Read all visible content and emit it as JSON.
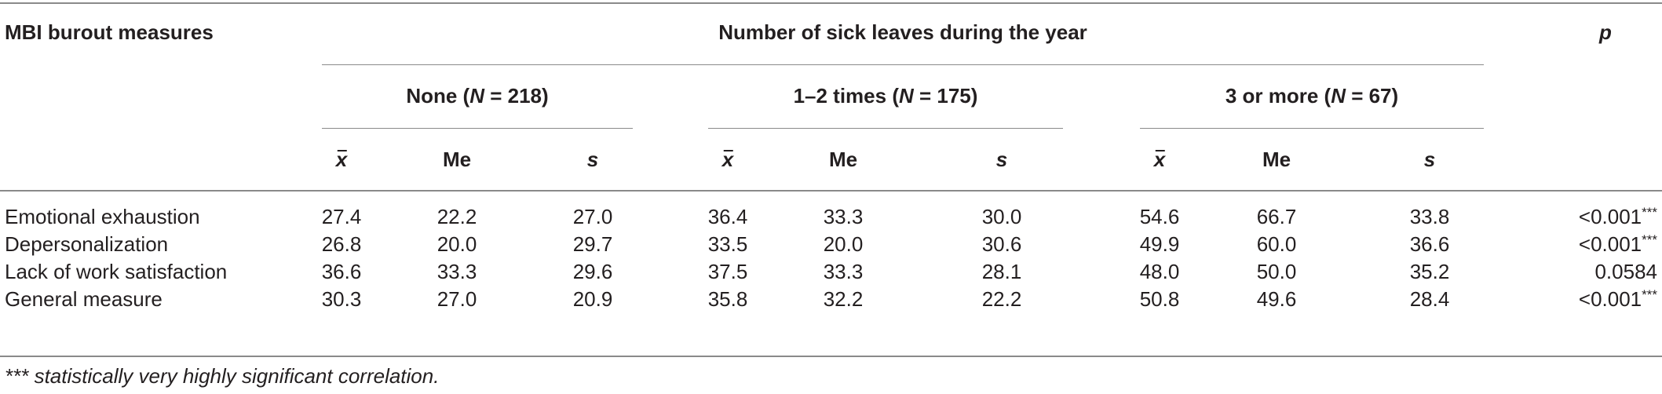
{
  "table": {
    "row_header": "MBI burout measures",
    "spanner": "Number of sick leaves during the year",
    "p_header": "p",
    "groups": [
      {
        "label_pre": "None (",
        "n_symbol": "N",
        "label_post": " = 218)"
      },
      {
        "label_pre": "1–2 times (",
        "n_symbol": "N",
        "label_post": " = 175)"
      },
      {
        "label_pre": "3 or more (",
        "n_symbol": "N",
        "label_post": " = 67)"
      }
    ],
    "stats": {
      "mean": "x",
      "median": "Me",
      "sd": "s"
    },
    "rows": [
      {
        "label": "Emotional exhaustion",
        "values": [
          "27.4",
          "22.2",
          "27.0",
          "36.4",
          "33.3",
          "30.0",
          "54.6",
          "66.7",
          "33.8"
        ],
        "p": "<0.001",
        "sig": "***"
      },
      {
        "label": "Depersonalization",
        "values": [
          "26.8",
          "20.0",
          "29.7",
          "33.5",
          "20.0",
          "30.6",
          "49.9",
          "60.0",
          "36.6"
        ],
        "p": "<0.001",
        "sig": "***"
      },
      {
        "label": "Lack of work satisfaction",
        "values": [
          "36.6",
          "33.3",
          "29.6",
          "37.5",
          "33.3",
          "28.1",
          "48.0",
          "50.0",
          "35.2"
        ],
        "p": "0.0584",
        "sig": ""
      },
      {
        "label": "General measure",
        "values": [
          "30.3",
          "27.0",
          "20.9",
          "35.8",
          "32.2",
          "22.2",
          "50.8",
          "49.6",
          "28.4"
        ],
        "p": "<0.001",
        "sig": "***"
      }
    ],
    "footnote": "*** statistically very highly significant correlation."
  }
}
